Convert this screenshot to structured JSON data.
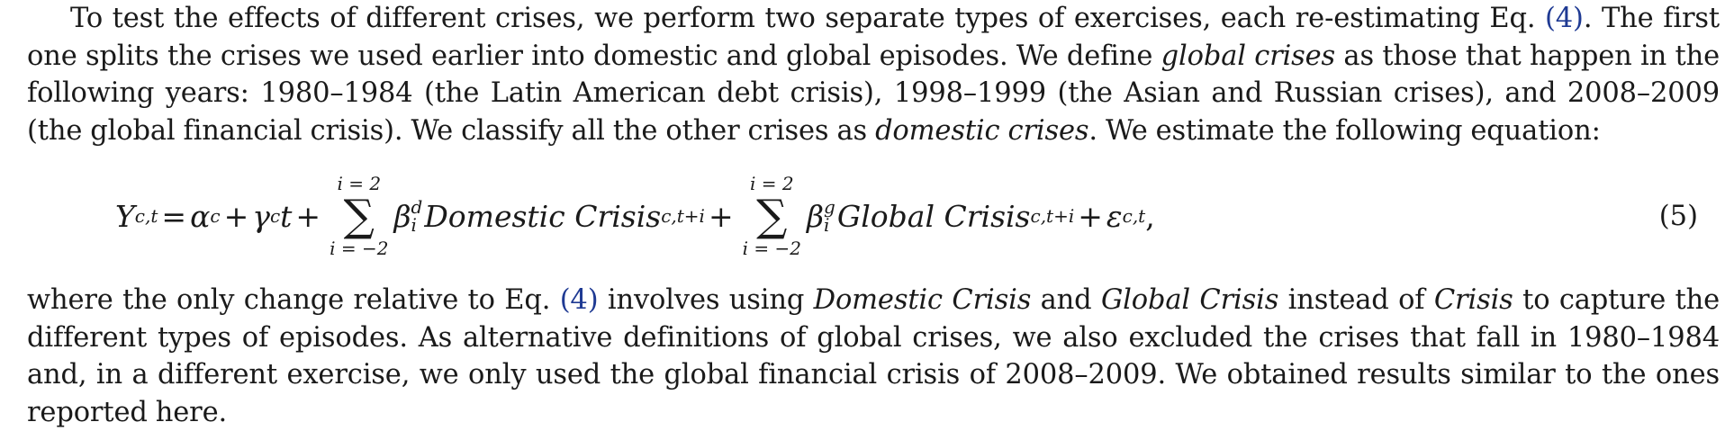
{
  "paragraph1": {
    "s1": "To test the effects of different crises, we perform two separate types of exercises, each re-estimating Eq. ",
    "ref1": "(4)",
    "s2": ". The first one splits the crises we used earlier into domestic and global episodes. We define ",
    "em1": "global crises",
    "s3": " as those that happen in the following years: 1980–1984 (the Latin American debt crisis), 1998–1999 (the Asian and Russian crises), and 2008–2009 (the global financial crisis). We classify all the other crises as ",
    "em2": "domestic crises",
    "s4": ". We estimate the following equation:"
  },
  "equation": {
    "Y": "Y",
    "Y_sub": "c,t",
    "eq": "=",
    "alpha": "α",
    "alpha_sub": "c",
    "plus": "+",
    "gamma": "γ",
    "gamma_sub": "c",
    "t": "t",
    "sum_upper": "i = 2",
    "sum_lower": "i = −2",
    "sigma": "∑",
    "beta": "β",
    "beta_d_sup": "d",
    "beta_g_sup": "g",
    "beta_sub": "i",
    "domestic_term": "Domestic Crisis",
    "global_term": "Global Crisis",
    "term_sub": "c,t+i",
    "epsilon": "ε",
    "epsilon_sub": "c,t",
    "comma": ",",
    "number": "(5)"
  },
  "paragraph2": {
    "s1": "where the only change relative to Eq. ",
    "ref1": "(4)",
    "s2": " involves using ",
    "em1": "Domestic Crisis",
    "s3": " and ",
    "em2": "Global Crisis",
    "s4": " instead of ",
    "em3": "Crisis",
    "s5": " to capture the different types of episodes. As alternative definitions of global crises, we also excluded the crises that fall in 1980–1984 and, in a different exercise, we only used the global financial crisis of 2008–2009. We obtained results similar to the ones reported here."
  },
  "colors": {
    "text": "#1a1a1a",
    "reference_link": "#1f3a93"
  }
}
